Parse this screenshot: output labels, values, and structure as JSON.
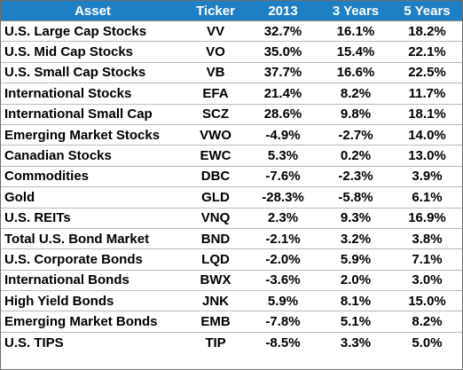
{
  "chart_data": {
    "type": "table",
    "columns": [
      "Asset",
      "Ticker",
      "2013",
      "3 Years",
      "5 Years"
    ],
    "rows": [
      {
        "asset": "U.S. Large Cap Stocks",
        "ticker": "VV",
        "y2013": "32.7%",
        "y3": "16.1%",
        "y5": "18.2%"
      },
      {
        "asset": "U.S. Mid Cap Stocks",
        "ticker": "VO",
        "y2013": "35.0%",
        "y3": "15.4%",
        "y5": "22.1%"
      },
      {
        "asset": "U.S. Small Cap Stocks",
        "ticker": "VB",
        "y2013": "37.7%",
        "y3": "16.6%",
        "y5": "22.5%"
      },
      {
        "asset": "International Stocks",
        "ticker": "EFA",
        "y2013": "21.4%",
        "y3": "8.2%",
        "y5": "11.7%"
      },
      {
        "asset": "International Small Cap",
        "ticker": "SCZ",
        "y2013": "28.6%",
        "y3": "9.8%",
        "y5": "18.1%"
      },
      {
        "asset": "Emerging Market Stocks",
        "ticker": "VWO",
        "y2013": "-4.9%",
        "y3": "-2.7%",
        "y5": "14.0%"
      },
      {
        "asset": "Canadian Stocks",
        "ticker": "EWC",
        "y2013": "5.3%",
        "y3": "0.2%",
        "y5": "13.0%"
      },
      {
        "asset": "Commodities",
        "ticker": "DBC",
        "y2013": "-7.6%",
        "y3": "-2.3%",
        "y5": "3.9%"
      },
      {
        "asset": "Gold",
        "ticker": "GLD",
        "y2013": "-28.3%",
        "y3": "-5.8%",
        "y5": "6.1%"
      },
      {
        "asset": "U.S. REITs",
        "ticker": "VNQ",
        "y2013": "2.3%",
        "y3": "9.3%",
        "y5": "16.9%"
      },
      {
        "asset": "Total U.S. Bond Market",
        "ticker": "BND",
        "y2013": "-2.1%",
        "y3": "3.2%",
        "y5": "3.8%"
      },
      {
        "asset": "U.S. Corporate Bonds",
        "ticker": "LQD",
        "y2013": "-2.0%",
        "y3": "5.9%",
        "y5": "7.1%"
      },
      {
        "asset": "International Bonds",
        "ticker": "BWX",
        "y2013": "-3.6%",
        "y3": "2.0%",
        "y5": "3.0%"
      },
      {
        "asset": "High Yield Bonds",
        "ticker": "JNK",
        "y2013": "5.9%",
        "y3": "8.1%",
        "y5": "15.0%"
      },
      {
        "asset": "Emerging Market Bonds",
        "ticker": "EMB",
        "y2013": "-7.8%",
        "y3": "5.1%",
        "y5": "8.2%"
      },
      {
        "asset": "U.S. TIPS",
        "ticker": "TIP",
        "y2013": "-8.5%",
        "y3": "3.3%",
        "y5": "5.0%"
      }
    ]
  },
  "colors": {
    "header_background": "#1f7fc4",
    "header_text": "#ffffff"
  }
}
